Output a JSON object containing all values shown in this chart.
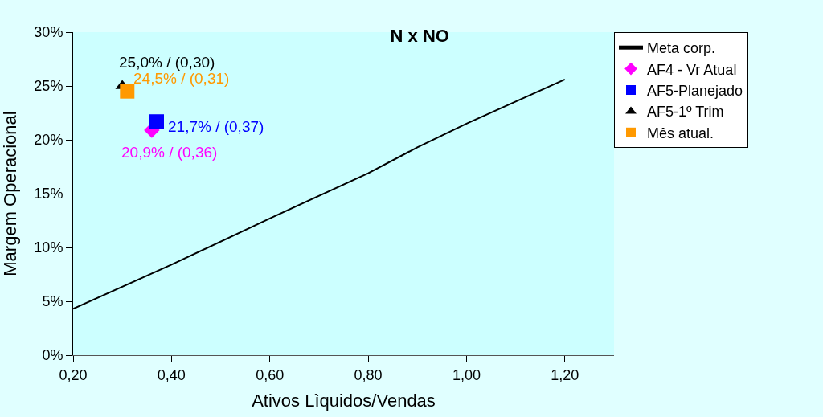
{
  "chart_data": {
    "type": "scatter",
    "title": "N x NO",
    "xlabel": "Ativos Lìquidos/Vendas",
    "ylabel": "Margem Operacional",
    "xlim": [
      0.2,
      1.3
    ],
    "xticks": [
      {
        "value": 0.2,
        "label": "0,20"
      },
      {
        "value": 0.4,
        "label": "0,40"
      },
      {
        "value": 0.6,
        "label": "0,60"
      },
      {
        "value": 0.8,
        "label": "0,80"
      },
      {
        "value": 1.0,
        "label": "1,00"
      },
      {
        "value": 1.2,
        "label": "1,20"
      }
    ],
    "ylim": [
      0,
      30
    ],
    "yticks": [
      {
        "value": 0,
        "label": "0%"
      },
      {
        "value": 5,
        "label": "5%"
      },
      {
        "value": 10,
        "label": "10%"
      },
      {
        "value": 15,
        "label": "15%"
      },
      {
        "value": 20,
        "label": "20%"
      },
      {
        "value": 25,
        "label": "25%"
      },
      {
        "value": 30,
        "label": "30%"
      }
    ],
    "grid": false,
    "legend": "top right",
    "series": [
      {
        "name": "Meta corp.",
        "type": "line",
        "color": "#000000",
        "marker": "none",
        "line_style": "solid",
        "x": [
          0.2,
          0.4,
          0.6,
          0.8,
          0.9,
          1.0,
          1.2
        ],
        "values": [
          4.3,
          8.4,
          12.7,
          16.9,
          19.3,
          21.5,
          25.6
        ]
      },
      {
        "name": "AF4 - Vr Atual",
        "color": "#ff00ff",
        "marker": "diamond",
        "x": [
          0.36
        ],
        "values": [
          20.9
        ],
        "value_labels": [
          "20,9% / (0,36)"
        ]
      },
      {
        "name": "AF5-Planejado",
        "color": "#0000ff",
        "marker": "square",
        "x": [
          0.37
        ],
        "values": [
          21.7
        ],
        "value_labels": [
          "21,7% / (0,37)"
        ]
      },
      {
        "name": "AF5-1º Trim",
        "color": "#000000",
        "marker": "triangle",
        "x": [
          0.3
        ],
        "values": [
          25.0
        ],
        "value_labels": [
          "25,0% / (0,30)"
        ]
      },
      {
        "name": "Mês atual.",
        "color": "#ff9900",
        "marker": "square",
        "x": [
          0.31
        ],
        "values": [
          24.5
        ],
        "value_labels": [
          "24,5% / (0,31)"
        ]
      }
    ]
  }
}
